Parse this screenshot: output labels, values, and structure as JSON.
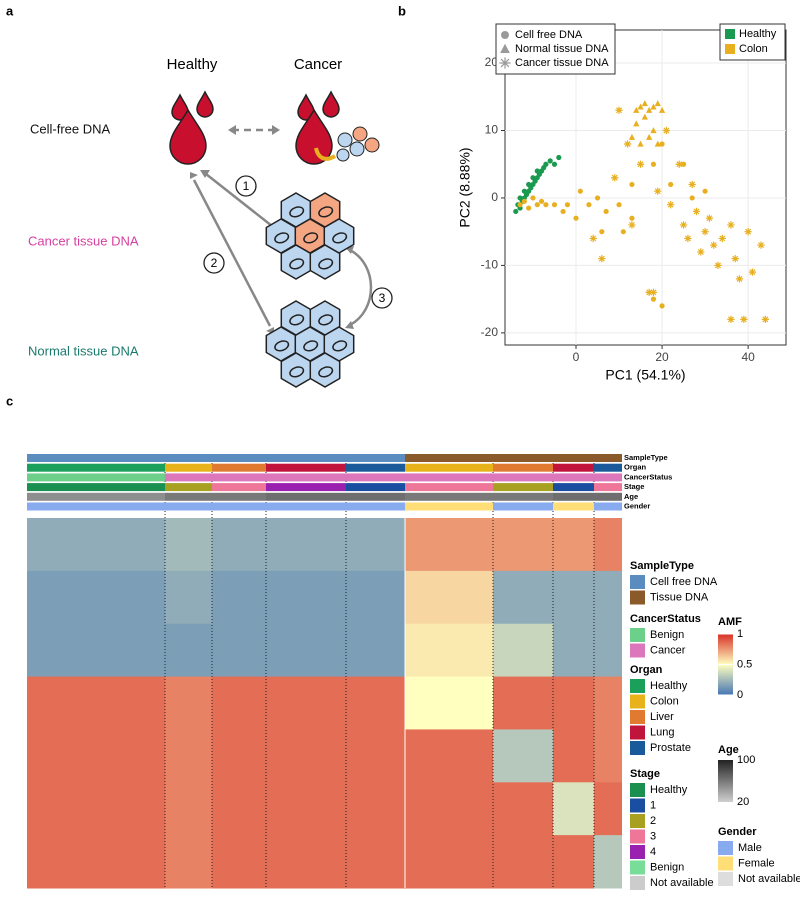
{
  "panel_labels": [
    "a",
    "b",
    "c"
  ],
  "diagram": {
    "columns": [
      "Healthy",
      "Cancer"
    ],
    "rows": [
      "Cell-free DNA",
      "Cancer tissue DNA",
      "Normal tissue DNA"
    ],
    "steps": [
      "1",
      "2",
      "3"
    ]
  },
  "chart_data": [
    {
      "type": "scatter",
      "xlabel": "PC1 (54.1%)",
      "ylabel": "PC2 (8.88%)",
      "xlim": [
        -16.5,
        48.8
      ],
      "ylim": [
        -21.8,
        24.9
      ],
      "xticks": [
        0,
        20,
        40
      ],
      "yticks": [
        -20,
        -10,
        0,
        10,
        20
      ],
      "grid": true,
      "shape_legend": [
        {
          "label": "Cell free DNA",
          "shape": "circle"
        },
        {
          "label": "Normal tissue DNA",
          "shape": "triangle"
        },
        {
          "label": "Cancer tissue DNA",
          "shape": "star"
        }
      ],
      "color_legend": [
        {
          "label": "Healthy",
          "color": "#1a9a50"
        },
        {
          "label": "Colon",
          "color": "#e8b020"
        }
      ],
      "series": [
        {
          "color_group": "Healthy",
          "shape_group": "Cell free DNA",
          "x": [
            -14,
            -13.5,
            -13,
            -13,
            -12.5,
            -12,
            -12,
            -11.5,
            -11,
            -11,
            -10.5,
            -10,
            -10,
            -9.5,
            -9,
            -9,
            -8.5,
            -8,
            -7.5,
            -7,
            -6,
            -5,
            -4
          ],
          "y": [
            -2,
            -1,
            -1.5,
            0,
            -0.5,
            0,
            1,
            0.5,
            1,
            2,
            1.5,
            2,
            3,
            2.5,
            3,
            4,
            3.5,
            4,
            4.5,
            5,
            5.5,
            5,
            6
          ]
        },
        {
          "color_group": "Colon",
          "shape_group": "Cell free DNA",
          "x": [
            -13,
            -12,
            -11,
            -10,
            -9,
            -8,
            -7,
            -5,
            -3,
            -2,
            1,
            3,
            5,
            7,
            10,
            13,
            18,
            20,
            22,
            25,
            27,
            30,
            13,
            6,
            0,
            18,
            20,
            11
          ],
          "y": [
            -1,
            -0.5,
            -1.5,
            0,
            -1,
            -0.5,
            -1,
            -1,
            -2,
            -1,
            1,
            -1,
            0,
            -2,
            -1,
            2,
            5,
            8,
            2,
            5,
            0,
            1,
            -3,
            -5,
            -3,
            -15,
            -16,
            -5
          ]
        },
        {
          "color_group": "Colon",
          "shape_group": "Normal tissue DNA",
          "x": [
            14,
            15,
            16,
            17,
            18,
            19,
            20,
            13,
            15,
            17,
            19,
            14,
            16,
            18
          ],
          "y": [
            13,
            13.5,
            14,
            13,
            13.5,
            14,
            13,
            9,
            8,
            9,
            8,
            11,
            12,
            10
          ]
        },
        {
          "color_group": "Colon",
          "shape_group": "Cancer tissue DNA",
          "x": [
            4,
            6,
            9,
            10,
            12,
            13,
            15,
            17,
            19,
            21,
            22,
            24,
            25,
            26,
            27,
            28,
            29,
            30,
            31,
            32,
            33,
            34,
            36,
            37,
            38,
            40,
            41,
            43,
            18,
            36,
            39,
            44
          ],
          "y": [
            -6,
            -9,
            3,
            13,
            8,
            -4,
            5,
            -14,
            1,
            10,
            -1,
            5,
            -4,
            -6,
            2,
            -2,
            -8,
            -5,
            -3,
            -7,
            -10,
            -6,
            -4,
            -9,
            -12,
            -5,
            -11,
            -7,
            -14,
            -18,
            -18,
            -18
          ]
        }
      ]
    },
    {
      "type": "heatmap",
      "categories": [
        null,
        null,
        null,
        null,
        null,
        null,
        null,
        null,
        null
      ],
      "values": [
        [
          0.2,
          0.25,
          0.2,
          0.2,
          0.2,
          0.75,
          0.75,
          0.75,
          0.8
        ],
        [
          0.15,
          0.2,
          0.15,
          0.15,
          0.15,
          0.6,
          0.2,
          0.2,
          0.2
        ],
        [
          0.15,
          0.15,
          0.15,
          0.15,
          0.15,
          0.55,
          0.35,
          0.2,
          0.2
        ],
        [
          0.85,
          0.8,
          0.85,
          0.85,
          0.85,
          0.5,
          0.85,
          0.85,
          0.8
        ],
        [
          0.85,
          0.8,
          0.85,
          0.85,
          0.85,
          0.85,
          0.3,
          0.85,
          0.8
        ],
        [
          0.85,
          0.8,
          0.85,
          0.85,
          0.85,
          0.85,
          0.85,
          0.4,
          0.85
        ],
        [
          0.85,
          0.8,
          0.85,
          0.85,
          0.85,
          0.85,
          0.85,
          0.85,
          0.3
        ]
      ],
      "colorbar": {
        "title": "AMF",
        "lim": [
          0,
          1
        ],
        "ticks": [
          0,
          0.5,
          1
        ],
        "colors": [
          "#4575b4",
          "#ffffbf",
          "#d73027"
        ]
      },
      "age": {
        "title": "Age",
        "lim": [
          20,
          100
        ],
        "ticks": [
          100,
          20
        ],
        "colors": [
          "#cfcfcf",
          "#222222"
        ]
      },
      "legends": [
        {
          "title": "SampleType",
          "items": [
            {
              "label": "Cell free DNA",
              "color": "#5b8cc0"
            },
            {
              "label": "Tissue DNA",
              "color": "#8b5a2b"
            }
          ]
        },
        {
          "title": "CancerStatus",
          "items": [
            {
              "label": "Benign",
              "color": "#6dd08a"
            },
            {
              "label": "Cancer",
              "color": "#dd77bb"
            }
          ]
        },
        {
          "title": "Organ",
          "items": [
            {
              "label": "Healthy",
              "color": "#1aa05a"
            },
            {
              "label": "Colon",
              "color": "#e8b21a"
            },
            {
              "label": "Liver",
              "color": "#e07a30"
            },
            {
              "label": "Lung",
              "color": "#c0143c"
            },
            {
              "label": "Prostate",
              "color": "#1a5a9a"
            }
          ]
        },
        {
          "title": "Stage",
          "items": [
            {
              "label": "Healthy",
              "color": "#1a9050"
            },
            {
              "label": "1",
              "color": "#1a4ea0"
            },
            {
              "label": "2",
              "color": "#a8a020"
            },
            {
              "label": "3",
              "color": "#ee7799"
            },
            {
              "label": "4",
              "color": "#9a20b0"
            },
            {
              "label": "Benign",
              "color": "#77dd99"
            },
            {
              "label": "Not available",
              "color": "#cccccc"
            }
          ]
        },
        {
          "title": "Gender",
          "items": [
            {
              "label": "Male",
              "color": "#88aaee"
            },
            {
              "label": "Female",
              "color": "#ffdd77"
            },
            {
              "label": "Not available",
              "color": "#dddddd"
            }
          ]
        }
      ],
      "tracks": [
        {
          "label": "SampleType",
          "values": [
            0,
            0,
            0,
            0,
            0,
            1,
            1,
            1,
            1
          ]
        },
        {
          "label": "Organ",
          "values": [
            0,
            1,
            2,
            3,
            4,
            1,
            2,
            3,
            4
          ]
        },
        {
          "label": "CancerStatus",
          "values": [
            0,
            1,
            1,
            1,
            1,
            1,
            1,
            1,
            1
          ]
        },
        {
          "label": "Stage",
          "values": [
            0,
            2,
            3,
            4,
            1,
            3,
            2,
            1,
            3
          ]
        },
        {
          "label": "Age",
          "values": [
            50,
            60,
            60,
            65,
            65,
            60,
            60,
            65,
            65
          ]
        },
        {
          "label": "Gender",
          "values": [
            0,
            0,
            0,
            0,
            0,
            1,
            0,
            1,
            0
          ]
        }
      ]
    }
  ]
}
